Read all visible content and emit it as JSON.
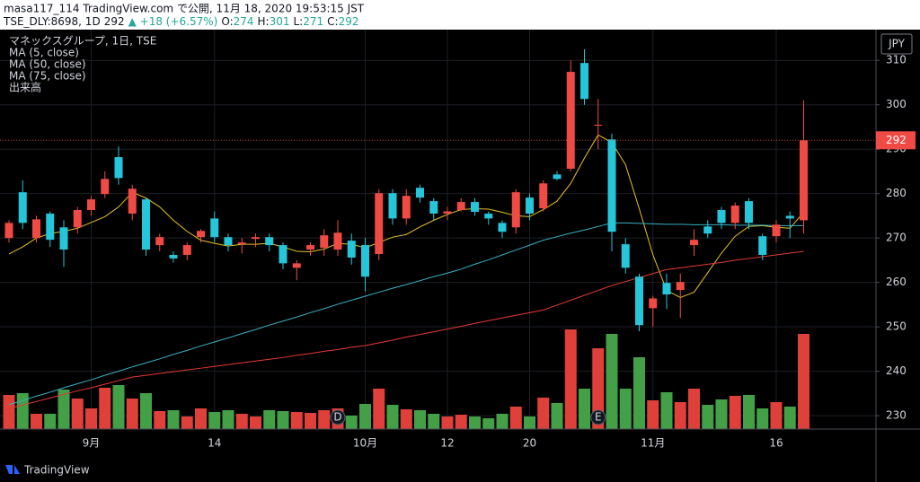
{
  "header": {
    "line1": "masa117_114 TradingView.com で公開, 11月 18, 2020 19:53:15 JST",
    "symbol": "TSE_DLY:8698, 1D",
    "price": "292",
    "change": "▲ +18 (+6.57%)",
    "quote": [
      "O:",
      "274",
      "H:",
      "301",
      "L:",
      "271",
      "C:",
      "292"
    ]
  },
  "branding": "TradingView",
  "chart_data": {
    "type": "candlestick",
    "title": "マネックスグループ, 1日, TSE",
    "currency": "JPY",
    "categories": [
      null,
      null,
      null,
      null,
      null,
      null,
      "9月",
      null,
      null,
      null,
      null,
      null,
      null,
      null,
      null,
      "14",
      null,
      null,
      null,
      null,
      null,
      null,
      null,
      null,
      null,
      null,
      "10月",
      null,
      null,
      null,
      null,
      null,
      "12",
      null,
      null,
      null,
      null,
      null,
      "20",
      null,
      null,
      null,
      null,
      null,
      null,
      null,
      null,
      "11月",
      null,
      null,
      null,
      null,
      null,
      null,
      null,
      null,
      "16",
      null,
      null
    ],
    "open": [
      270,
      280.3,
      270,
      275.5,
      272.4,
      272.4,
      276.3,
      279.9,
      288.2,
      275.5,
      278.7,
      268.4,
      266.2,
      266.2,
      270.2,
      274.4,
      270.2,
      268.6,
      269.8,
      270.2,
      268.4,
      263.3,
      267.4,
      267.8,
      267.4,
      269.4,
      268.4,
      266.4,
      280.1,
      274.4,
      281.3,
      278.3,
      275.5,
      276.3,
      278.1,
      275.5,
      273.4,
      272.4,
      279.1,
      276.7,
      284.3,
      285.6,
      309.4,
      295.3,
      292.2,
      268.6,
      261.3,
      254.2,
      259.9,
      258.3,
      268.4,
      272.6,
      276.3,
      273.4,
      278.3,
      270.4,
      270.4,
      275,
      274
    ],
    "high": [
      274,
      283,
      275,
      276,
      274,
      277,
      279.5,
      285,
      290.6,
      282,
      279,
      271,
      267,
      269,
      272,
      276,
      271,
      270,
      271,
      271,
      269,
      265,
      269,
      272,
      274,
      271,
      270,
      281,
      281,
      281,
      282,
      279,
      277,
      279,
      279,
      276,
      274,
      281,
      280,
      283,
      285,
      310,
      312.5,
      301.3,
      293.5,
      270,
      262,
      257,
      262,
      262,
      272,
      274,
      277,
      278,
      279,
      271,
      274,
      276,
      301
    ],
    "low": [
      269,
      272,
      269,
      268,
      263.5,
      271,
      275,
      279,
      282,
      274,
      266,
      267,
      264.5,
      265,
      269,
      269,
      267,
      266.5,
      268,
      267,
      263,
      260.5,
      266,
      266,
      266,
      264,
      258,
      265,
      273,
      273,
      278,
      274,
      274,
      276,
      275,
      273,
      270,
      271,
      274,
      276,
      283,
      285,
      300,
      290,
      267,
      262,
      249,
      250,
      254,
      252,
      266,
      270,
      272,
      272,
      272,
      265,
      269,
      270,
      271
    ],
    "close": [
      273.4,
      273.4,
      274.2,
      269.6,
      267.4,
      276.3,
      278.7,
      283.3,
      283.5,
      281.1,
      267.4,
      270.2,
      265.4,
      268.4,
      271.6,
      270.2,
      268.4,
      269,
      270.2,
      268.4,
      264.3,
      264.3,
      268.4,
      270.6,
      271.2,
      265.6,
      261.3,
      280.1,
      274.4,
      279.5,
      279.1,
      275.5,
      276,
      278.1,
      275.9,
      274.4,
      271.4,
      280.3,
      275.5,
      282.3,
      283.3,
      307.4,
      301.3,
      295.5,
      271.4,
      263.3,
      250.4,
      256.4,
      257.3,
      260.1,
      269.6,
      271,
      273.4,
      277.3,
      273.4,
      266.2,
      273,
      274.4,
      292
    ],
    "up_color": "#f04a45",
    "down_color": "#26c6da",
    "volume_name": "出来高",
    "volume": [
      38,
      40,
      17,
      17,
      44,
      34,
      23,
      46,
      49,
      34,
      40,
      20,
      21,
      14,
      23,
      19,
      21,
      17,
      14,
      21,
      20,
      19,
      18,
      21,
      23,
      15,
      28,
      45,
      27,
      22,
      21,
      17,
      14,
      16,
      14,
      12,
      17,
      25,
      14,
      35,
      29,
      111,
      45,
      90,
      106,
      45,
      80,
      32,
      41,
      30,
      45,
      27,
      33,
      37,
      38,
      23,
      30,
      25,
      106
    ],
    "volume_up_color": "#e0403a",
    "volume_down_color": "#43a047",
    "series": [
      {
        "name": "MA (5, close)",
        "color": "#e6c229",
        "values": [
          266.4,
          268,
          270,
          271,
          271.5,
          272.2,
          273.5,
          274.8,
          277,
          280.3,
          279,
          277,
          274,
          271.5,
          269.5,
          268.8,
          268.2,
          268.6,
          268.6,
          268.8,
          268,
          267,
          266.9,
          267.5,
          268.8,
          268.6,
          267.8,
          269,
          270.2,
          270.8,
          272.5,
          274,
          275.3,
          276.4,
          276.6,
          276.5,
          275.8,
          275,
          274.8,
          276.4,
          278.3,
          282.3,
          288,
          293.2,
          291.5,
          286.5,
          276.6,
          266.2,
          258.2,
          256.6,
          257.8,
          262.2,
          266.6,
          270.4,
          272.6,
          272.8,
          272.4,
          272.2,
          275.8
        ]
      },
      {
        "name": "MA (50, close)",
        "color": "#3ab0c3",
        "values": [
          232.5,
          233.4,
          234.4,
          235.3,
          236.3,
          237.2,
          238.1,
          239.1,
          240,
          241,
          241.9,
          242.8,
          243.8,
          244.7,
          245.7,
          246.6,
          247.5,
          248.5,
          249.4,
          250.4,
          251.3,
          252.2,
          253.2,
          254.1,
          255.1,
          256,
          256.9,
          257.8,
          258.7,
          259.5,
          260.4,
          261.3,
          262.1,
          263,
          264.1,
          265.1,
          266.2,
          267.3,
          268.4,
          269.5,
          270.3,
          271.1,
          271.8,
          272.6,
          273.4,
          273.4,
          273.3,
          273.2,
          273.1,
          273.1,
          273,
          273,
          273,
          272.9,
          272.9,
          272.9,
          272.8,
          272.8,
          272.8
        ]
      },
      {
        "name": "MA (75, close)",
        "color": "#e53935",
        "values": [
          231.6,
          232.4,
          233.2,
          234,
          234.8,
          235.6,
          236.3,
          237.1,
          237.9,
          238.7,
          239.1,
          239.5,
          239.9,
          240.3,
          240.7,
          241.1,
          241.5,
          241.9,
          242.3,
          242.7,
          243.1,
          243.6,
          244,
          244.5,
          244.9,
          245.4,
          245.8,
          246.4,
          247,
          247.7,
          248.3,
          248.9,
          249.5,
          250.1,
          250.8,
          251.4,
          252,
          252.6,
          253.2,
          253.8,
          254.9,
          256,
          257.1,
          258.2,
          259.3,
          260.2,
          261.1,
          262,
          262.9,
          263.3,
          263.7,
          264.1,
          264.5,
          265,
          265.4,
          265.8,
          266.2,
          266.6,
          267
        ]
      }
    ],
    "events": [
      {
        "label": "D",
        "index": 24
      },
      {
        "label": "E",
        "index": 43
      }
    ],
    "ylim": [
      227,
      315.9
    ],
    "yticks": [
      230,
      240,
      250,
      260,
      270,
      280,
      290,
      300,
      310
    ],
    "grid": true
  }
}
